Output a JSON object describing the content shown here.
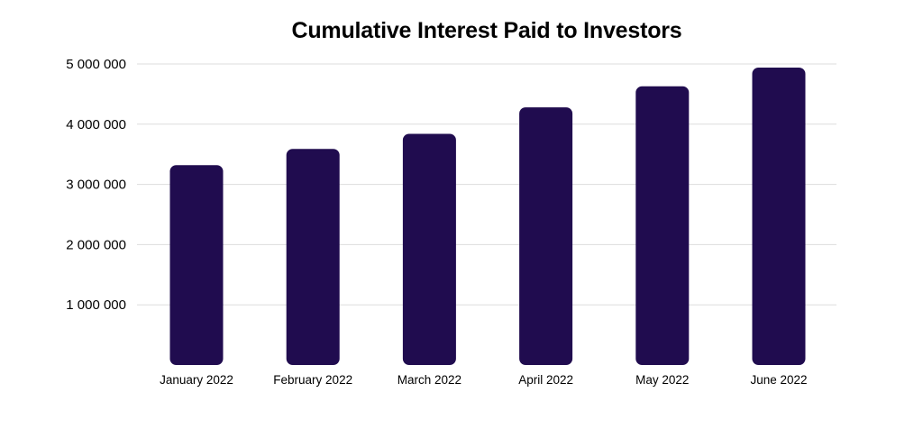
{
  "colors": {
    "bar": "#200c4f",
    "grid": "#dddddd",
    "background": "#ffffff"
  },
  "chart_data": {
    "type": "bar",
    "title": "Cumulative Interest Paid to Investors",
    "xlabel": "",
    "ylabel": "",
    "categories": [
      "January 2022",
      "February 2022",
      "March 2022",
      "April 2022",
      "May 2022",
      "June 2022"
    ],
    "values": [
      3320000,
      3590000,
      3840000,
      4280000,
      4630000,
      4940000
    ],
    "ylim": [
      0,
      5000000
    ],
    "yticks": [
      1000000,
      2000000,
      3000000,
      4000000,
      5000000
    ],
    "ytick_labels": [
      "1 000 000",
      "2 000 000",
      "3 000 000",
      "4 000 000",
      "5 000 000"
    ],
    "grid": true,
    "legend": "none"
  }
}
